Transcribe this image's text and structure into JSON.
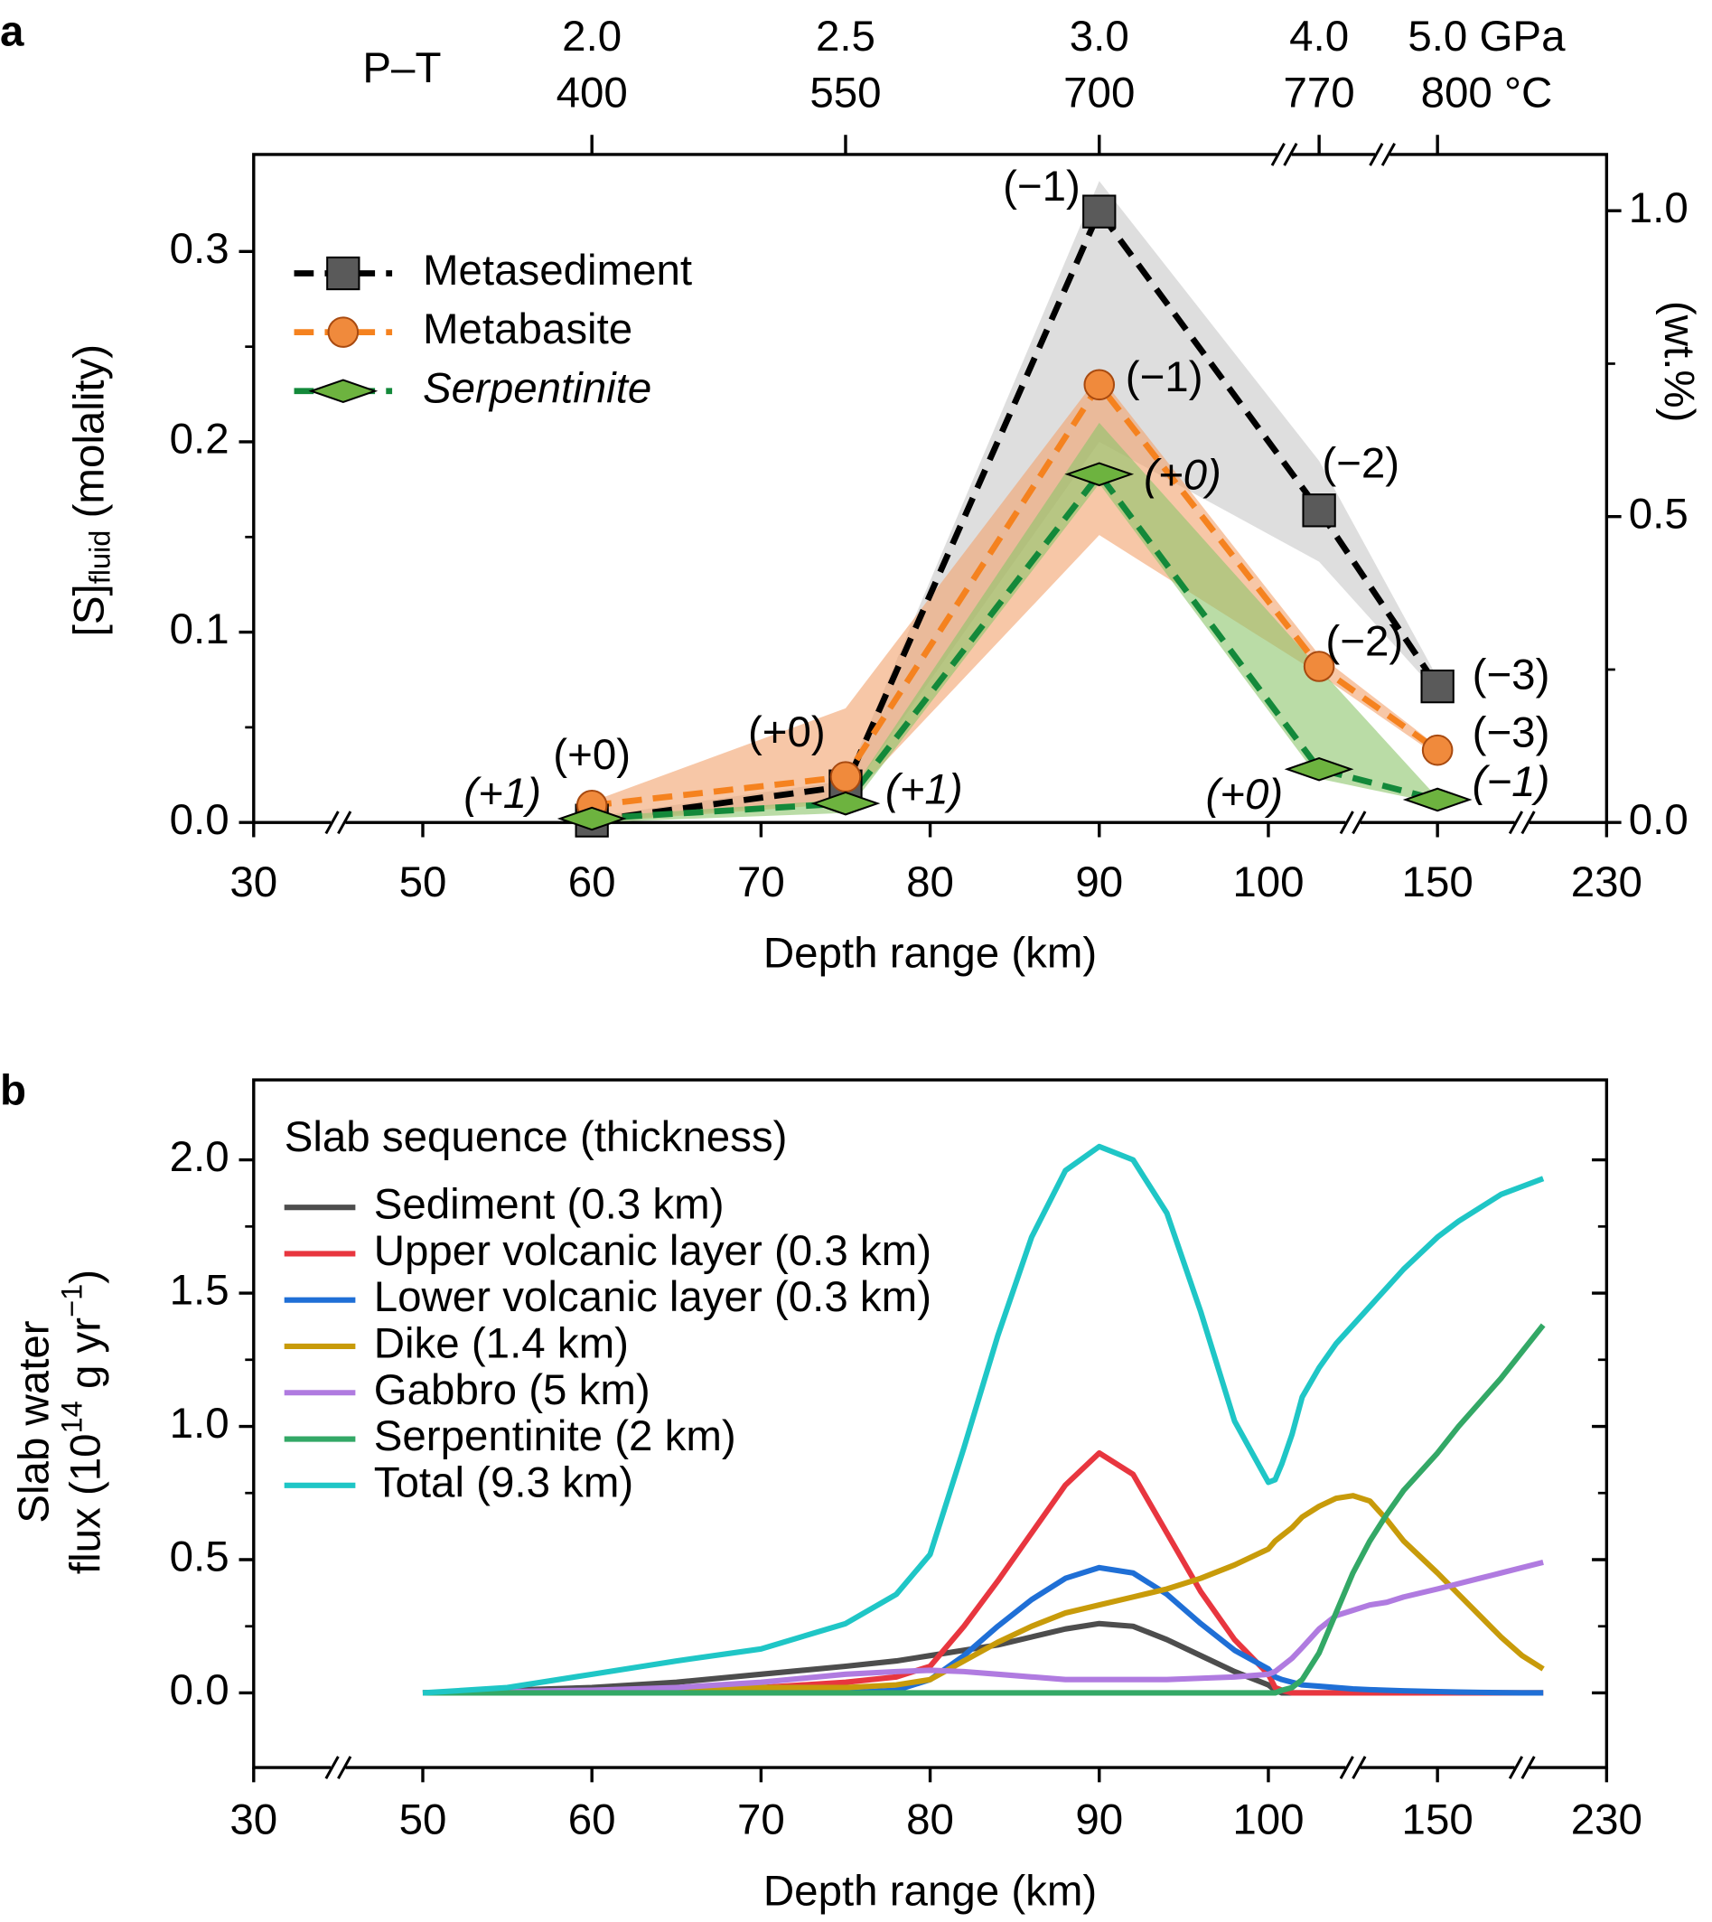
{
  "chart_data": [
    {
      "type": "line",
      "panel_label": "a",
      "xlabel": "Depth range (km)",
      "ylabel": [
        "[S]",
        "fluid",
        " (molality)"
      ],
      "y2label": "(wt.%)",
      "x2label": "P–T",
      "xlim": [
        30,
        230
      ],
      "xticks": [
        30,
        50,
        60,
        70,
        80,
        90,
        100,
        150,
        230
      ],
      "x2ticks": [
        {
          "value": 60,
          "label": [
            "2.0",
            "400"
          ]
        },
        {
          "value": 75,
          "label": [
            "2.5",
            "550"
          ]
        },
        {
          "value": 90,
          "label": [
            "3.0",
            "700"
          ]
        },
        {
          "value": 115,
          "label": [
            "4.0",
            "770"
          ]
        },
        {
          "value": 150,
          "label": [
            "5.0 GPa",
            "800 °C"
          ]
        }
      ],
      "ylim": [
        0,
        0.351
      ],
      "yticks": [
        {
          "value": 0,
          "label": "0.0"
        },
        0.1,
        0.2,
        0.3
      ],
      "yminor": [
        0.05,
        0.15,
        0.25
      ],
      "y2lim": [
        0,
        1.092
      ],
      "y2ticks": [
        {
          "value": 0,
          "label": "0.0"
        },
        0.5,
        {
          "value": 1,
          "label": "1.0"
        }
      ],
      "y2minor": [
        0.25,
        0.75
      ],
      "x": [
        60,
        75,
        90,
        115,
        150
      ],
      "series": [
        {
          "name": "Metasediment",
          "color": "#000000",
          "marker": "square",
          "marker_color": "#5a5a5a",
          "band_color": "#c8c8c8",
          "values": [
            0.001,
            0.019,
            0.321,
            0.164,
            0.0715
          ],
          "upper": [
            0.003,
            0.022,
            0.337,
            0.19,
            0.076
          ],
          "lower": [
            0,
            0.012,
            0.2,
            0.137,
            0.068
          ],
          "labels": [
            null,
            null,
            "(−1)",
            "(−2)",
            "(−3)"
          ]
        },
        {
          "name": "Metabasite",
          "color": "#f5821f",
          "marker": "circle",
          "marker_color": "#f08a3c",
          "band_color": "#f2a16c",
          "values": [
            0.009,
            0.024,
            0.23,
            0.082,
            0.038
          ],
          "upper": [
            0.011,
            0.06,
            0.235,
            0.088,
            0.04
          ],
          "lower": [
            0,
            0.01,
            0.151,
            0.078,
            0.035
          ],
          "labels": [
            "(+0)",
            "(+0)",
            "(−1)",
            "(−2)",
            "(−3)"
          ]
        },
        {
          "name": "Serpentinite",
          "color": "#13893a",
          "marker": "diamond",
          "marker_color": "#6db33f",
          "band_color": "#8cc46a",
          "fontstyle": "italic",
          "values": [
            0.002,
            0.01,
            0.183,
            0.028,
            0.012
          ],
          "upper": [
            0.003,
            0.012,
            0.21,
            0.081,
            0.013
          ],
          "lower": [
            0,
            0.005,
            0.178,
            0.023,
            0.01
          ],
          "labels": [
            "(+1)",
            "(+1)",
            "(+0)",
            "(+0)",
            "(−1)"
          ]
        }
      ]
    },
    {
      "type": "line",
      "panel_label": "b",
      "xlabel": "Depth range (km)",
      "ylabel": [
        "Slab water",
        "flux (10",
        "14",
        " g yr",
        "−1",
        ")"
      ],
      "legend_title": "Slab sequence (thickness)",
      "xlim": [
        30,
        230
      ],
      "xticks": [
        30,
        50,
        60,
        70,
        80,
        90,
        100,
        150,
        230
      ],
      "ylim": [
        -0.28,
        2.3
      ],
      "yticks": [
        {
          "value": 0,
          "label": "0.0"
        },
        0.5,
        {
          "value": 1,
          "label": "1.0"
        },
        1.5,
        {
          "value": 2,
          "label": "2.0"
        }
      ],
      "yminor": [
        0.25,
        0.75,
        1.25,
        1.75
      ],
      "x": [
        50,
        55,
        60,
        65,
        70,
        75,
        78,
        80,
        82,
        84,
        86,
        88,
        90,
        92,
        94,
        96,
        98,
        100,
        102,
        104,
        107,
        110,
        115,
        120,
        125,
        130,
        135,
        140,
        150,
        160,
        170,
        180,
        190,
        200
      ],
      "series": [
        {
          "name": "Sediment (0.3 km)",
          "color": "#4d4d4d",
          "values": [
            0,
            0.01,
            0.02,
            0.04,
            0.07,
            0.1,
            0.12,
            0.14,
            0.16,
            0.18,
            0.21,
            0.24,
            0.26,
            0.25,
            0.2,
            0.14,
            0.08,
            0.03,
            0.01,
            0,
            0,
            0,
            0,
            0,
            0,
            0,
            0,
            0,
            0,
            0,
            0,
            0,
            0,
            0
          ]
        },
        {
          "name": "Upper volcanic layer (0.3 km)",
          "color": "#e8363f",
          "values": [
            0,
            0,
            0.005,
            0.01,
            0.02,
            0.04,
            0.06,
            0.1,
            0.25,
            0.42,
            0.6,
            0.78,
            0.9,
            0.82,
            0.6,
            0.38,
            0.2,
            0.07,
            0.02,
            0.01,
            0,
            0,
            0,
            0,
            0,
            0,
            0,
            0,
            0,
            0,
            0,
            0,
            0,
            0
          ]
        },
        {
          "name": "Lower volcanic layer (0.3 km)",
          "color": "#1f6fd6",
          "values": [
            0,
            0,
            0,
            0,
            0,
            0,
            0.01,
            0.05,
            0.14,
            0.25,
            0.35,
            0.43,
            0.47,
            0.45,
            0.37,
            0.26,
            0.16,
            0.09,
            0.06,
            0.05,
            0.04,
            0.03,
            0.025,
            0.02,
            0.015,
            0.012,
            0.01,
            0.008,
            0.005,
            0.003,
            0.002,
            0.001,
            0,
            0
          ]
        },
        {
          "name": "Dike (1.4 km)",
          "color": "#c89b0a",
          "values": [
            0,
            0,
            0.005,
            0.01,
            0.02,
            0.02,
            0.03,
            0.05,
            0.12,
            0.19,
            0.25,
            0.3,
            0.33,
            0.36,
            0.39,
            0.43,
            0.48,
            0.54,
            0.57,
            0.59,
            0.62,
            0.66,
            0.7,
            0.73,
            0.74,
            0.72,
            0.65,
            0.57,
            0.45,
            0.37,
            0.29,
            0.21,
            0.14,
            0.09
          ]
        },
        {
          "name": "Gabbro (5 km)",
          "color": "#b07be0",
          "values": [
            0,
            0.005,
            0.01,
            0.02,
            0.04,
            0.07,
            0.08,
            0.085,
            0.08,
            0.07,
            0.06,
            0.05,
            0.05,
            0.05,
            0.05,
            0.055,
            0.06,
            0.07,
            0.08,
            0.1,
            0.13,
            0.17,
            0.24,
            0.29,
            0.31,
            0.33,
            0.34,
            0.36,
            0.39,
            0.41,
            0.43,
            0.45,
            0.47,
            0.49
          ]
        },
        {
          "name": "Serpentinite (2 km)",
          "color": "#33a866",
          "values": [
            0,
            0,
            0,
            0,
            0,
            0,
            0,
            0,
            0,
            0,
            0,
            0,
            0,
            0,
            0,
            0,
            0,
            0,
            0,
            0.01,
            0.02,
            0.05,
            0.15,
            0.3,
            0.45,
            0.57,
            0.67,
            0.76,
            0.9,
            1.0,
            1.09,
            1.18,
            1.28,
            1.38
          ]
        },
        {
          "name": "Total (9.3 km)",
          "color": "#1fc6c6",
          "values": [
            0,
            0.02,
            0.07,
            0.12,
            0.165,
            0.26,
            0.37,
            0.52,
            0.92,
            1.34,
            1.71,
            1.96,
            2.05,
            2.0,
            1.8,
            1.43,
            1.02,
            0.79,
            0.8,
            0.86,
            0.97,
            1.11,
            1.22,
            1.31,
            1.38,
            1.45,
            1.52,
            1.59,
            1.71,
            1.77,
            1.82,
            1.87,
            1.9,
            1.93
          ]
        }
      ]
    }
  ]
}
